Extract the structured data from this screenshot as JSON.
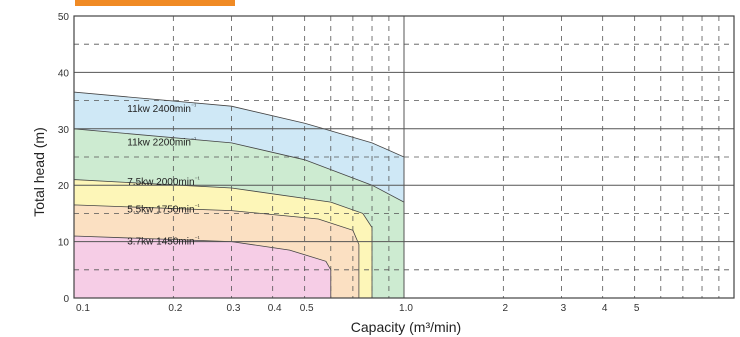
{
  "chart_data": {
    "type": "area",
    "xlabel": "Capacity (m³/min)",
    "ylabel": "Total head (m)",
    "x_scale": "log",
    "xlim": [
      0.1,
      10
    ],
    "ylim": [
      0,
      50
    ],
    "grid": true,
    "x_ticks": [
      {
        "value": 0.1,
        "label": "0.1"
      },
      {
        "value": 0.2,
        "label": "0.2"
      },
      {
        "value": 0.3,
        "label": "0.3"
      },
      {
        "value": 0.4,
        "label": "0.4"
      },
      {
        "value": 0.5,
        "label": "0.5"
      },
      {
        "value": 1,
        "label": "1.0"
      },
      {
        "value": 2,
        "label": "2"
      },
      {
        "value": 3,
        "label": "3"
      },
      {
        "value": 4,
        "label": "4"
      },
      {
        "value": 5,
        "label": "5"
      }
    ],
    "y_ticks": [
      0,
      10,
      20,
      30,
      40,
      50
    ],
    "series": [
      {
        "name": "11kw 2400min⁻¹",
        "color": "#cfe8f6",
        "points": [
          [
            0.1,
            36.5
          ],
          [
            0.3,
            34
          ],
          [
            0.5,
            31
          ],
          [
            0.8,
            27.5
          ],
          [
            1.0,
            25
          ],
          [
            1.0,
            0
          ]
        ]
      },
      {
        "name": "11kw 2200min⁻¹",
        "color": "#cdebd1",
        "points": [
          [
            0.1,
            30
          ],
          [
            0.3,
            27.5
          ],
          [
            0.5,
            24.5
          ],
          [
            0.8,
            20
          ],
          [
            1.0,
            17
          ],
          [
            1.0,
            0
          ]
        ]
      },
      {
        "name": "7.5kw 2000min⁻¹",
        "color": "#fdf6b8",
        "points": [
          [
            0.1,
            21
          ],
          [
            0.3,
            19.5
          ],
          [
            0.6,
            17
          ],
          [
            0.75,
            15
          ],
          [
            0.8,
            12.5
          ],
          [
            0.8,
            0
          ]
        ]
      },
      {
        "name": "5.5kw 1750min⁻¹",
        "color": "#fbe0c2",
        "points": [
          [
            0.1,
            16.5
          ],
          [
            0.3,
            15.5
          ],
          [
            0.55,
            14
          ],
          [
            0.7,
            12
          ],
          [
            0.73,
            9.5
          ],
          [
            0.73,
            0
          ]
        ]
      },
      {
        "name": "3.7kw 1450min⁻¹",
        "color": "#f6cde6",
        "points": [
          [
            0.1,
            11
          ],
          [
            0.3,
            10
          ],
          [
            0.45,
            8.5
          ],
          [
            0.58,
            6.5
          ],
          [
            0.6,
            5
          ],
          [
            0.6,
            0
          ]
        ]
      }
    ]
  }
}
